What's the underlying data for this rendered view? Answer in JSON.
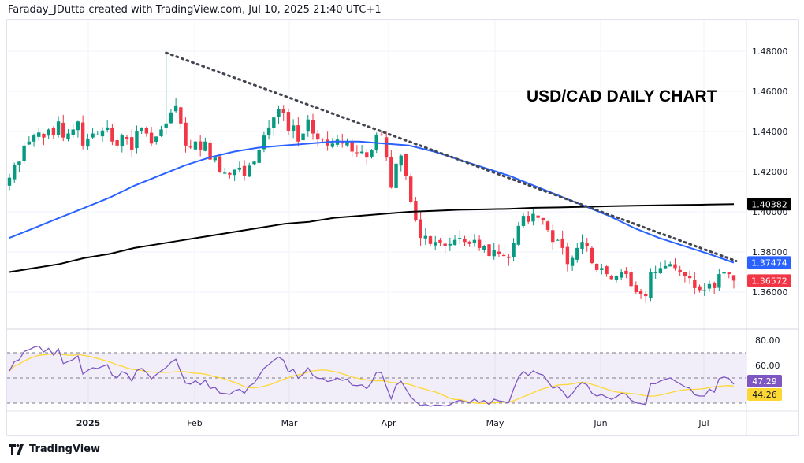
{
  "header": {
    "text": "Faraday_JDutta created with TradingView.com, Jul 10, 2025 21:40 UTC+1"
  },
  "footer": {
    "brand": "TradingView",
    "icon": "tradingview-logo-icon"
  },
  "colors": {
    "up": "#089981",
    "down": "#f23645",
    "ma50": "#2962ff",
    "ma200": "#000000",
    "rsi": "#7e57c2",
    "rsi_ma": "#fdd835",
    "trendline": "#434651"
  },
  "chart_data": {
    "type": "candlestick",
    "title": "USD/CAD DAILY CHART",
    "symbol": "USD/CAD",
    "ylim": [
      1.348,
      1.49
    ],
    "y_ticks": [
      "1.48000",
      "1.46000",
      "1.44000",
      "1.42000",
      "1.40000",
      "1.38000",
      "1.36000"
    ],
    "x_ticks": [
      "2025",
      "Feb",
      "Mar",
      "Apr",
      "May",
      "Jun",
      "Jul"
    ],
    "grid": true,
    "closes": [
      1.417,
      1.4235,
      1.425,
      1.433,
      1.435,
      1.438,
      1.4395,
      1.437,
      1.441,
      1.438,
      1.445,
      1.437,
      1.439,
      1.441,
      1.445,
      1.433,
      1.4365,
      1.439,
      1.4385,
      1.4405,
      1.442,
      1.435,
      1.433,
      1.438,
      1.4365,
      1.431,
      1.44,
      1.442,
      1.439,
      1.434,
      1.4375,
      1.441,
      1.444,
      1.4495,
      1.453,
      1.444,
      1.433,
      1.432,
      1.435,
      1.431,
      1.435,
      1.426,
      1.427,
      1.42,
      1.4195,
      1.4185,
      1.421,
      1.422,
      1.418,
      1.423,
      1.425,
      1.431,
      1.438,
      1.442,
      1.447,
      1.451,
      1.449,
      1.44,
      1.443,
      1.435,
      1.439,
      1.446,
      1.439,
      1.436,
      1.436,
      1.433,
      1.434,
      1.436,
      1.434,
      1.435,
      1.43,
      1.4295,
      1.43,
      1.427,
      1.431,
      1.4385,
      1.438,
      1.427,
      1.412,
      1.424,
      1.428,
      1.418,
      1.405,
      1.396,
      1.387,
      1.388,
      1.384,
      1.385,
      1.3845,
      1.383,
      1.384,
      1.386,
      1.387,
      1.385,
      1.384,
      1.386,
      1.382,
      1.383,
      1.378,
      1.381,
      1.379,
      1.378,
      1.377,
      1.3845,
      1.393,
      1.398,
      1.395,
      1.399,
      1.397,
      1.396,
      1.391,
      1.385,
      1.386,
      1.382,
      1.374,
      1.377,
      1.382,
      1.385,
      1.383,
      1.3745,
      1.371,
      1.372,
      1.369,
      1.3665,
      1.368,
      1.37,
      1.369,
      1.363,
      1.36,
      1.359,
      1.358,
      1.37,
      1.37,
      1.372,
      1.373,
      1.374,
      1.372,
      1.37,
      1.368,
      1.367,
      1.362,
      1.361,
      1.361,
      1.364,
      1.362,
      1.369,
      1.37,
      1.369,
      1.36572
    ],
    "feb3_high": 1.4792,
    "ma50_weekly": [
      1.387,
      1.392,
      1.397,
      1.402,
      1.407,
      1.413,
      1.418,
      1.423,
      1.427,
      1.43,
      1.432,
      1.433,
      1.434,
      1.435,
      1.435,
      1.434,
      1.433,
      1.43,
      1.426,
      1.422,
      1.418,
      1.413,
      1.408,
      1.403,
      1.398,
      1.392,
      1.387,
      1.383,
      1.379,
      1.3747
    ],
    "ma200_weekly": [
      1.37,
      1.372,
      1.374,
      1.377,
      1.379,
      1.382,
      1.384,
      1.386,
      1.388,
      1.39,
      1.392,
      1.394,
      1.395,
      1.397,
      1.398,
      1.399,
      1.4,
      1.4005,
      1.401,
      1.4012,
      1.4015,
      1.402,
      1.4022,
      1.4025,
      1.4028,
      1.403,
      1.4032,
      1.4034,
      1.4036,
      1.40382
    ],
    "trendline": {
      "from": [
        "Feb 3",
        1.4792
      ],
      "to": [
        "Jul 10",
        1.3755
      ]
    },
    "price_labels": {
      "ma200": "1.40382",
      "ma50": "1.37474",
      "last": "1.36572"
    },
    "rsi": {
      "ticks": [
        "80.00",
        "60.00"
      ],
      "bands": [
        70,
        50,
        30
      ],
      "value": "47.29",
      "ma_value": "44.26",
      "ylim": [
        22,
        88
      ]
    }
  }
}
